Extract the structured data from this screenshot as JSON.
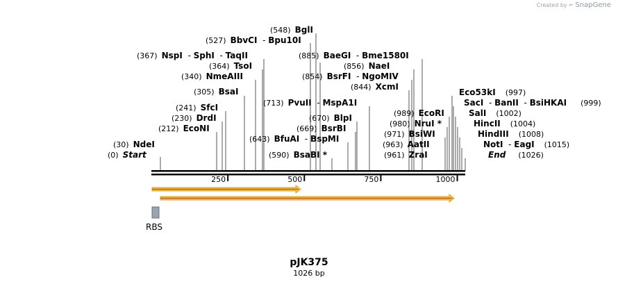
{
  "watermark": {
    "prefix": "Created by",
    "brand": "SnapGene"
  },
  "plasmid": {
    "name": "pJK375",
    "length_label": "1026 bp",
    "length": 1026
  },
  "ruler": {
    "ticks": [
      250,
      500,
      750,
      1000
    ]
  },
  "feature_label": "RBS",
  "sites_left": [
    {
      "pos": "(548)",
      "names": [
        "BglI"
      ]
    },
    {
      "pos": "(527)",
      "names": [
        "BbvCI",
        "Bpu10I"
      ]
    },
    {
      "pos": "(367)",
      "names": [
        "NspI",
        "SphI",
        "TaqII"
      ]
    },
    {
      "pos": "(364)",
      "names": [
        "TsoI"
      ]
    },
    {
      "pos": "(340)",
      "names": [
        "NmeAIII"
      ]
    },
    {
      "pos": "(305)",
      "names": [
        "BsaI"
      ]
    },
    {
      "pos": "(241)",
      "names": [
        "SfcI"
      ]
    },
    {
      "pos": "(230)",
      "names": [
        "DrdI"
      ]
    },
    {
      "pos": "(212)",
      "names": [
        "EcoNI"
      ]
    },
    {
      "pos": "(30)",
      "names": [
        "NdeI"
      ]
    },
    {
      "pos": "(0)",
      "names": [
        "Start"
      ]
    }
  ],
  "sites_middle": [
    {
      "pos": "(885)",
      "names": [
        "BaeGI",
        "Bme1580I"
      ]
    },
    {
      "pos": "(856)",
      "names": [
        "NaeI"
      ]
    },
    {
      "pos": "(854)",
      "names": [
        "BsrFI",
        "NgoMIV"
      ]
    },
    {
      "pos": "(844)",
      "names": [
        "XcmI"
      ]
    },
    {
      "pos": "(713)",
      "names": [
        "PvuII",
        "MspA1I"
      ]
    },
    {
      "pos": "(670)",
      "names": [
        "BlpI"
      ]
    },
    {
      "pos": "(669)",
      "names": [
        "BsrBI"
      ]
    },
    {
      "pos": "(643)",
      "names": [
        "BfuAI",
        "BspMI"
      ]
    },
    {
      "pos": "(590)",
      "names": [
        "BsaBI *"
      ]
    }
  ],
  "sites_right": [
    {
      "pos": "(989)",
      "names": [
        "EcoRI"
      ]
    },
    {
      "pos": "(980)",
      "names": [
        "NruI *"
      ]
    },
    {
      "pos": "(971)",
      "names": [
        "BsiWI"
      ]
    },
    {
      "pos": "(963)",
      "names": [
        "AatII"
      ]
    },
    {
      "pos": "(961)",
      "names": [
        "ZraI"
      ]
    }
  ],
  "sites_far_right": [
    {
      "pos": "(997)",
      "names": [
        "Eco53kI"
      ]
    },
    {
      "pos": "(999)",
      "names": [
        "SacI",
        "BanII",
        "BsiHKAI"
      ]
    },
    {
      "pos": "(1002)",
      "names": [
        "SalI"
      ]
    },
    {
      "pos": "(1004)",
      "names": [
        "HincII"
      ]
    },
    {
      "pos": "(1008)",
      "names": [
        "HindIII"
      ]
    },
    {
      "pos": "(1015)",
      "names": [
        "NotI",
        "EagI"
      ]
    },
    {
      "pos": "(1026)",
      "names": [
        "End"
      ]
    }
  ],
  "colors": {
    "arrow_fill": "#f6c64b",
    "arrow_edge": "#b9601c",
    "feature_box": "#9aa4ae",
    "line": "#000000",
    "leader": "#555555"
  }
}
